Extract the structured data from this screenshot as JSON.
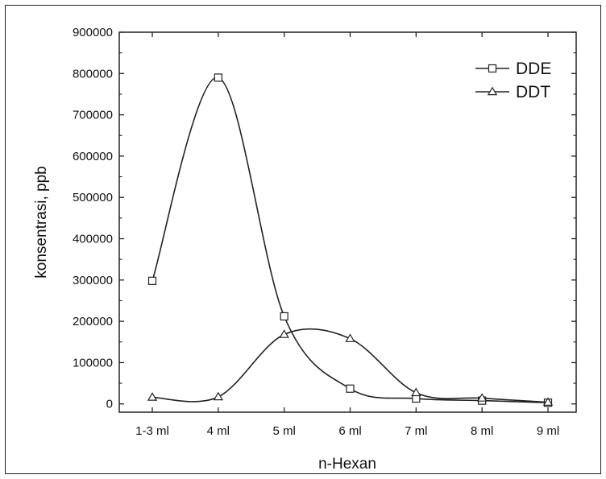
{
  "chart_data": {
    "type": "line",
    "categories": [
      "1-3 ml",
      "4 ml",
      "5 ml",
      "6 ml",
      "7 ml",
      "8 ml",
      "9 ml"
    ],
    "series": [
      {
        "name": "DDE",
        "marker": "square",
        "values": [
          298000,
          790000,
          212000,
          37000,
          13000,
          8000,
          3000
        ]
      },
      {
        "name": "DDT",
        "marker": "triangle",
        "values": [
          16000,
          17000,
          168000,
          158000,
          27000,
          14000,
          4000
        ]
      }
    ],
    "xlabel": "n-Hexan",
    "ylabel": "konsentrasi, ppb",
    "ylim": [
      -20000,
      900000
    ],
    "yticks": [
      0,
      100000,
      200000,
      300000,
      400000,
      500000,
      600000,
      700000,
      800000,
      900000
    ],
    "grid": false,
    "legend_position": "top-right",
    "line_color": "#222222"
  }
}
